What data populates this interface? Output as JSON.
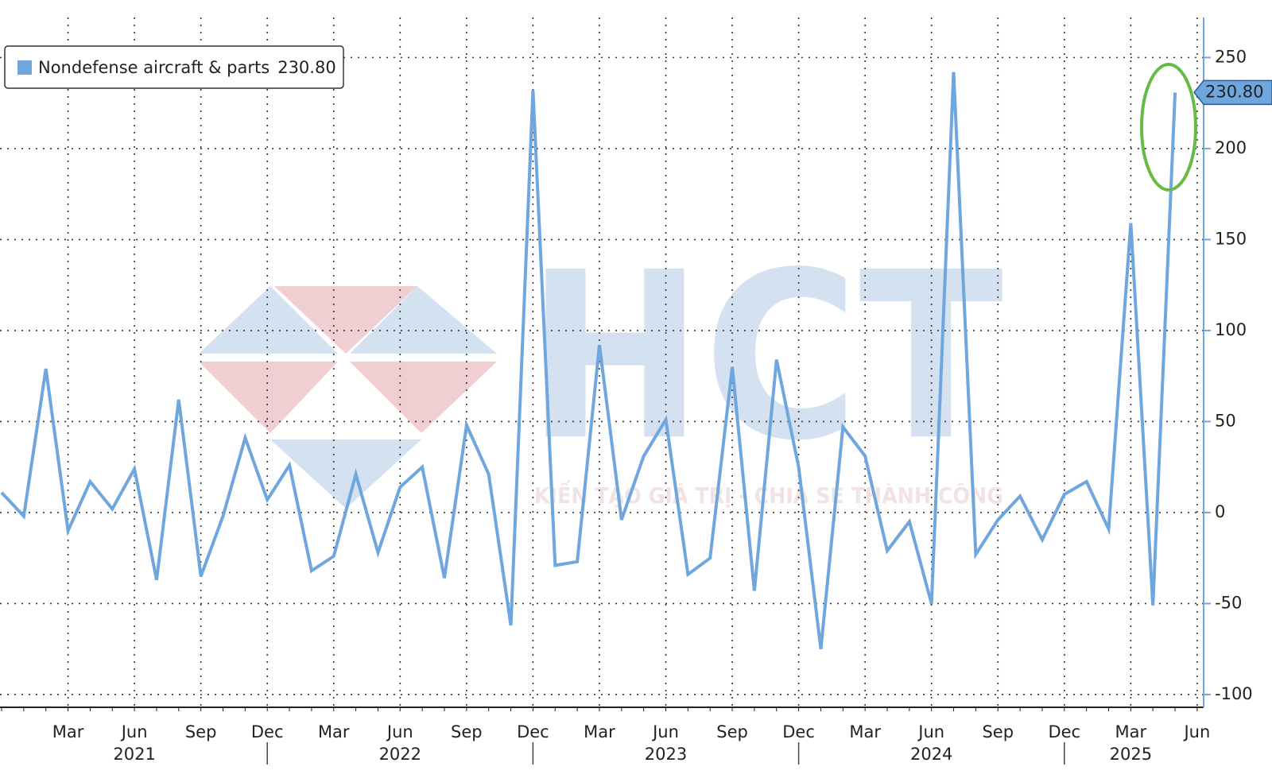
{
  "chart_data": {
    "type": "line",
    "categories": [
      null,
      null,
      null,
      "Mar",
      null,
      null,
      "Jun",
      null,
      null,
      "Sep",
      null,
      null,
      "Dec",
      null,
      null,
      "Mar",
      null,
      null,
      "Jun",
      null,
      null,
      "Sep",
      null,
      null,
      "Dec",
      null,
      null,
      "Mar",
      null,
      null,
      "Jun",
      null,
      null,
      "Sep",
      null,
      null,
      "Dec",
      null,
      null,
      "Mar",
      null,
      null,
      "Jun",
      null,
      null,
      "Sep",
      null,
      null,
      "Dec",
      null,
      null,
      "Mar",
      null,
      null,
      "Jun"
    ],
    "year_labels": [
      null,
      null,
      null,
      null,
      null,
      null,
      "2021",
      null,
      null,
      null,
      null,
      null,
      null,
      null,
      null,
      null,
      null,
      null,
      "2022",
      null,
      null,
      null,
      null,
      null,
      null,
      null,
      null,
      null,
      null,
      null,
      "2023",
      null,
      null,
      null,
      null,
      null,
      null,
      null,
      null,
      null,
      null,
      null,
      "2024",
      null,
      null,
      null,
      null,
      null,
      null,
      null,
      null,
      "2025",
      null,
      null,
      null
    ],
    "series": [
      {
        "name": "Nondefense aircraft & parts",
        "color": "#6fa6de",
        "values": [
          11,
          -2,
          79,
          -10,
          17,
          2,
          24,
          -37,
          62,
          -35,
          -2,
          41,
          7,
          26,
          -32,
          -24,
          21,
          -22,
          14,
          25,
          -36,
          48,
          21,
          -62,
          232,
          -29,
          -27,
          92,
          -4,
          31,
          51,
          -34,
          -25,
          80,
          -43,
          84,
          25,
          -75,
          47,
          31,
          -21,
          -5,
          -50,
          242,
          -23,
          -4,
          9,
          -15,
          10,
          17,
          -9,
          159,
          -51,
          230.8,
          null
        ],
        "value_labels": [
          null,
          null,
          null,
          null,
          null,
          null,
          null,
          null,
          null,
          null,
          null,
          null,
          null,
          null,
          null,
          null,
          null,
          null,
          null,
          null,
          null,
          null,
          null,
          null,
          null,
          null,
          null,
          null,
          null,
          null,
          null,
          null,
          null,
          null,
          null,
          null,
          null,
          null,
          null,
          null,
          null,
          null,
          null,
          null,
          null,
          null,
          null,
          null,
          null,
          null,
          null,
          null,
          null,
          "230.80",
          null
        ]
      }
    ],
    "ylim": [
      -107,
      272
    ],
    "yticks": [
      -100,
      -50,
      0,
      50,
      100,
      150,
      200,
      250
    ],
    "grid": true,
    "legend": "top-left"
  },
  "watermark": {
    "logo": "HCT",
    "tagline": "KIẾN TẠO GIÁ TRỊ - CHIA SẺ THÀNH CÔNG"
  }
}
